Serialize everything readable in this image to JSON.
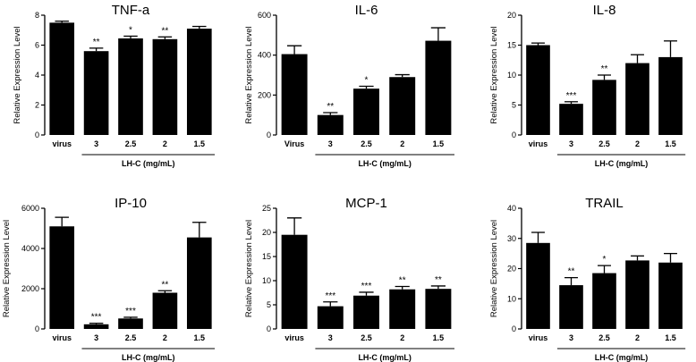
{
  "chart_data": [
    {
      "type": "bar",
      "title": "TNF-a",
      "ylabel": "Relative Expression Level",
      "xlabel": "LH-C (mg/mL)",
      "categories": [
        "virus",
        "3",
        "2.5",
        "2",
        "1.5"
      ],
      "values": [
        7.5,
        5.6,
        6.45,
        6.4,
        7.1
      ],
      "errors": [
        0.1,
        0.2,
        0.15,
        0.15,
        0.15
      ],
      "significance": [
        "",
        "**",
        "*",
        "**",
        ""
      ],
      "ylim": [
        0,
        8
      ],
      "yticks": [
        0,
        2,
        4,
        6,
        8
      ],
      "ytick_labels": [
        "0",
        "2",
        "4",
        "6",
        "8"
      ]
    },
    {
      "type": "bar",
      "title": "IL-6",
      "ylabel": "Relative Expression Level",
      "xlabel": "LH-C (mg/mL)",
      "categories": [
        "Virus",
        "3",
        "2.5",
        "2",
        "1.5"
      ],
      "values": [
        405,
        100,
        232,
        290,
        472
      ],
      "errors": [
        42,
        12,
        12,
        12,
        65
      ],
      "significance": [
        "",
        "**",
        "*",
        "",
        ""
      ],
      "ylim": [
        0,
        600
      ],
      "yticks": [
        0,
        200,
        400,
        600
      ],
      "ytick_labels": [
        "0",
        "200",
        "400",
        "600"
      ]
    },
    {
      "type": "bar",
      "title": "IL-8",
      "ylabel": "Relative Expression Level",
      "xlabel": "LH-C (mg/mL)",
      "categories": [
        "virus",
        "3",
        "2.5",
        "2",
        "1.5"
      ],
      "values": [
        15,
        5.2,
        9.2,
        12,
        13
      ],
      "errors": [
        0.35,
        0.35,
        0.8,
        1.4,
        2.7
      ],
      "significance": [
        "",
        "***",
        "**",
        "",
        ""
      ],
      "ylim": [
        0,
        20
      ],
      "yticks": [
        0,
        5,
        10,
        15,
        20
      ],
      "ytick_labels": [
        "0",
        "5",
        "10",
        "15",
        "20"
      ]
    },
    {
      "type": "bar",
      "title": "IP-10",
      "ylabel": "Relative Expression Level",
      "xlabel": "LH-C (mg/mL)",
      "categories": [
        "virus",
        "3",
        "2.5",
        "2",
        "1.5"
      ],
      "values": [
        5100,
        230,
        520,
        1800,
        4550
      ],
      "errors": [
        450,
        50,
        60,
        100,
        750
      ],
      "significance": [
        "",
        "***",
        "***",
        "**",
        ""
      ],
      "ylim": [
        0,
        6000
      ],
      "yticks": [
        0,
        2000,
        4000,
        6000
      ],
      "ytick_labels": [
        "0",
        "2000",
        "4000",
        "6000"
      ]
    },
    {
      "type": "bar",
      "title": "MCP-1",
      "ylabel": "Relative Expression Level",
      "xlabel": "LH-C (mg/mL)",
      "categories": [
        "virus",
        "3",
        "2.5",
        "2",
        "1.5"
      ],
      "values": [
        19.5,
        4.7,
        6.9,
        8.2,
        8.3
      ],
      "errors": [
        3.5,
        0.9,
        0.7,
        0.6,
        0.6
      ],
      "significance": [
        "",
        "***",
        "***",
        "**",
        "**"
      ],
      "ylim": [
        0,
        25
      ],
      "yticks": [
        0,
        5,
        10,
        15,
        20,
        25
      ],
      "ytick_labels": [
        "0",
        "5",
        "10",
        "15",
        "20",
        "25"
      ]
    },
    {
      "type": "bar",
      "title": "TRAIL",
      "ylabel": "Relative Expression Level",
      "xlabel": "LH-C (mg/mL)",
      "categories": [
        "virus",
        "3",
        "2.5",
        "2",
        "1.5"
      ],
      "values": [
        28.5,
        14.5,
        18.5,
        22.7,
        22
      ],
      "errors": [
        3.5,
        2.5,
        2.5,
        1.5,
        3
      ],
      "significance": [
        "",
        "**",
        "*",
        "",
        ""
      ],
      "ylim": [
        0,
        40
      ],
      "yticks": [
        0,
        10,
        20,
        30,
        40
      ],
      "ytick_labels": [
        "0",
        "10",
        "20",
        "30",
        "40"
      ]
    }
  ]
}
